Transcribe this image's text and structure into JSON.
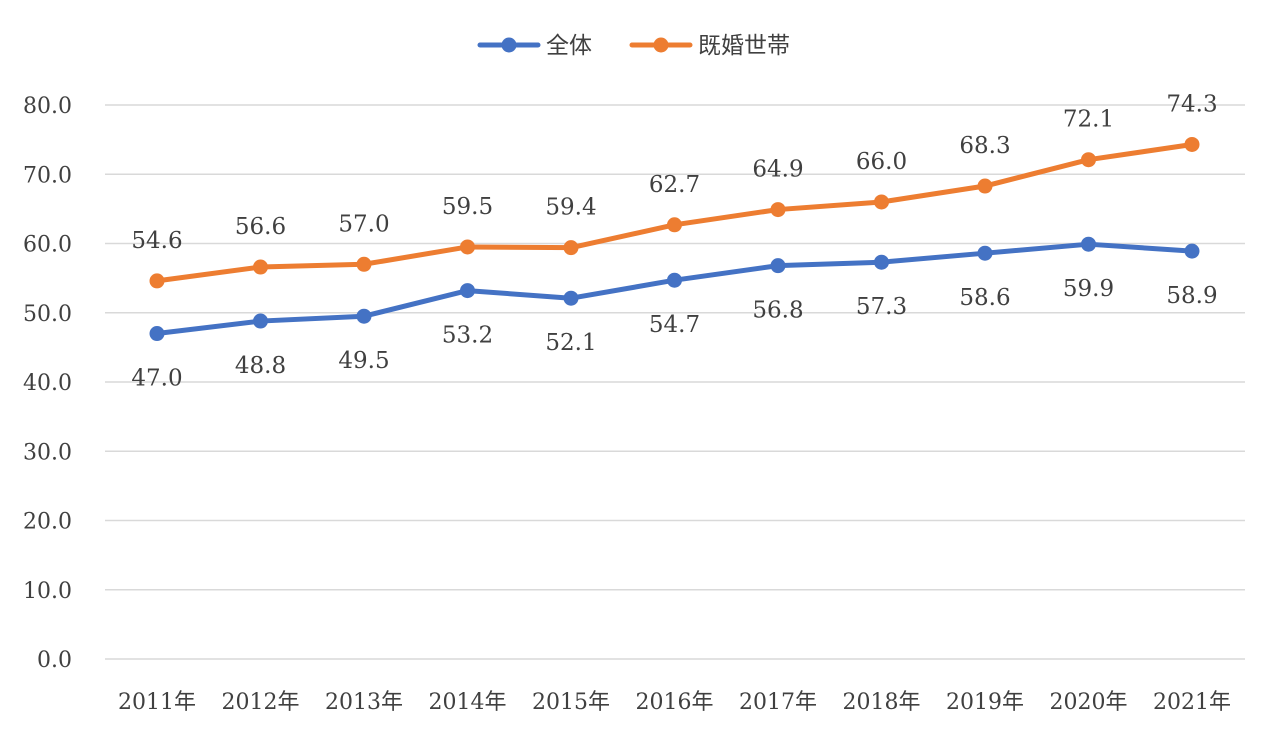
{
  "chart_data": {
    "type": "line",
    "title": "",
    "xlabel": "",
    "ylabel": "",
    "categories": [
      "2011年",
      "2012年",
      "2013年",
      "2014年",
      "2015年",
      "2016年",
      "2017年",
      "2018年",
      "2019年",
      "2020年",
      "2021年"
    ],
    "ylim": [
      0,
      80
    ],
    "yticks": [
      "0.0",
      "10.0",
      "20.0",
      "30.0",
      "40.0",
      "50.0",
      "60.0",
      "70.0",
      "80.0"
    ],
    "grid": true,
    "legend_position": "top-center",
    "series": [
      {
        "name": "全体",
        "color": "#4472C4",
        "values": [
          47.0,
          48.8,
          49.5,
          53.2,
          52.1,
          54.7,
          56.8,
          57.3,
          58.6,
          59.9,
          58.9
        ],
        "labels": [
          "47.0",
          "48.8",
          "49.5",
          "53.2",
          "52.1",
          "54.7",
          "56.8",
          "57.3",
          "58.6",
          "59.9",
          "58.9"
        ],
        "label_position": "below"
      },
      {
        "name": "既婚世帯",
        "color": "#ED7D31",
        "values": [
          54.6,
          56.6,
          57.0,
          59.5,
          59.4,
          62.7,
          64.9,
          66.0,
          68.3,
          72.1,
          74.3
        ],
        "labels": [
          "54.6",
          "56.6",
          "57.0",
          "59.5",
          "59.4",
          "62.7",
          "64.9",
          "66.0",
          "68.3",
          "72.1",
          "74.3"
        ],
        "label_position": "above"
      }
    ]
  }
}
